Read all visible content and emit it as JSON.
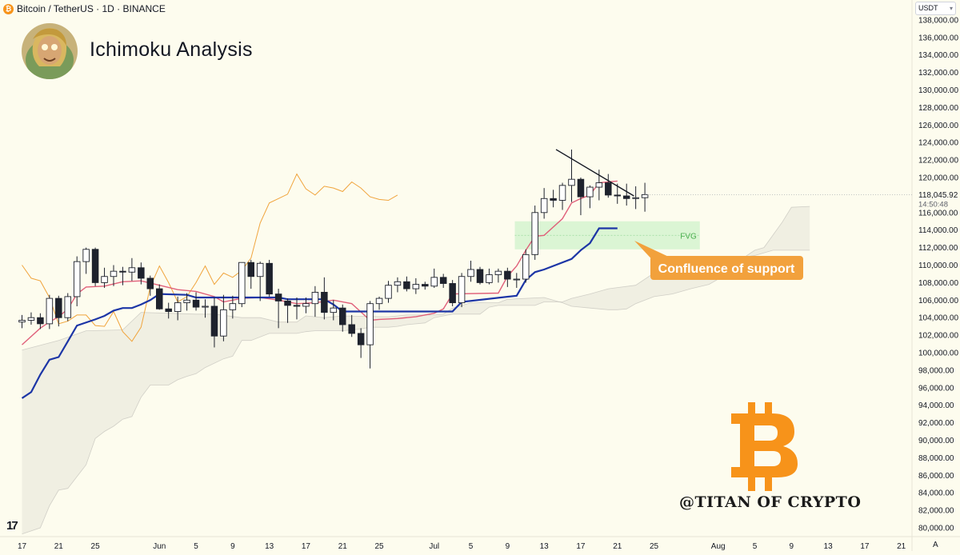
{
  "header": {
    "symbol_line": "Bitcoin / TetherUS · 1D · BINANCE",
    "coin_glyph": "₿"
  },
  "title": "Ichimoku Analysis",
  "currency_select": "USDT",
  "watermark": "@TITAN OF CRYPTO",
  "tv_logo": "17",
  "axis_button": "A",
  "colors": {
    "background": "#fdfcee",
    "bull_candle": "#ffffff",
    "bear_candle": "#1e222d",
    "tenkan": "#e0607a",
    "kijun": "#1c35a6",
    "chikou": "#f0a43c",
    "cloud": "#c4c2bb",
    "fvg": "#bfeec0",
    "callout": "#f2a13c",
    "bitcoin": "#f7931a"
  },
  "chart_data": {
    "type": "candlestick",
    "interval": "1D",
    "ylim": [
      79000,
      139000
    ],
    "y_ticks": [
      "138,000.00",
      "136,000.00",
      "134,000.00",
      "132,000.00",
      "130,000.00",
      "128,000.00",
      "126,000.00",
      "124,000.00",
      "122,000.00",
      "120,000.00",
      "118,000.00",
      "116,000.00",
      "114,000.00",
      "112,000.00",
      "110,000.00",
      "108,000.00",
      "106,000.00",
      "104,000.00",
      "102,000.00",
      "100,000.00",
      "98,000.00",
      "96,000.00",
      "94,000.00",
      "92,000.00",
      "90,000.00",
      "88,000.00",
      "86,000.00",
      "84,000.00",
      "82,000.00",
      "80,000.00"
    ],
    "y_tick_values": [
      138000,
      136000,
      134000,
      132000,
      130000,
      128000,
      126000,
      124000,
      122000,
      120000,
      118000,
      116000,
      114000,
      112000,
      110000,
      108000,
      106000,
      104000,
      102000,
      100000,
      98000,
      96000,
      94000,
      92000,
      90000,
      88000,
      86000,
      84000,
      82000,
      80000
    ],
    "x_ticks": [
      {
        "label": "17",
        "day": 0
      },
      {
        "label": "21",
        "day": 4
      },
      {
        "label": "25",
        "day": 8
      },
      {
        "label": "Jun",
        "day": 15
      },
      {
        "label": "5",
        "day": 19
      },
      {
        "label": "9",
        "day": 23
      },
      {
        "label": "13",
        "day": 27
      },
      {
        "label": "17",
        "day": 31
      },
      {
        "label": "21",
        "day": 35
      },
      {
        "label": "25",
        "day": 39
      },
      {
        "label": "Jul",
        "day": 45
      },
      {
        "label": "5",
        "day": 49
      },
      {
        "label": "9",
        "day": 53
      },
      {
        "label": "13",
        "day": 57
      },
      {
        "label": "17",
        "day": 61
      },
      {
        "label": "21",
        "day": 65
      },
      {
        "label": "25",
        "day": 69
      },
      {
        "label": "Aug",
        "day": 76
      },
      {
        "label": "5",
        "day": 80
      },
      {
        "label": "9",
        "day": 84
      },
      {
        "label": "13",
        "day": 88
      },
      {
        "label": "17",
        "day": 92
      },
      {
        "label": "21",
        "day": 96
      }
    ],
    "candles": [
      [
        103500,
        104300,
        102800,
        103700
      ],
      [
        103700,
        104600,
        103200,
        104000
      ],
      [
        104000,
        104500,
        102700,
        103300
      ],
      [
        103300,
        106600,
        102700,
        106200
      ],
      [
        106200,
        106500,
        103000,
        104000
      ],
      [
        104000,
        106800,
        103600,
        106400
      ],
      [
        106400,
        111000,
        105300,
        110400
      ],
      [
        110400,
        112000,
        109000,
        111800
      ],
      [
        111800,
        112000,
        107600,
        108000
      ],
      [
        108000,
        109700,
        107400,
        108700
      ],
      [
        108700,
        110000,
        107600,
        109300
      ],
      [
        109300,
        109800,
        107700,
        109200
      ],
      [
        109200,
        110800,
        108200,
        109700
      ],
      [
        109700,
        110300,
        107800,
        108500
      ],
      [
        108500,
        108800,
        106500,
        107300
      ],
      [
        107300,
        107800,
        104900,
        105000
      ],
      [
        105000,
        105700,
        103900,
        104700
      ],
      [
        104700,
        106400,
        103700,
        105700
      ],
      [
        105700,
        106800,
        104800,
        106000
      ],
      [
        106000,
        106900,
        104800,
        105200
      ],
      [
        105200,
        106100,
        104000,
        105300
      ],
      [
        105300,
        106300,
        100600,
        101900
      ],
      [
        101900,
        106600,
        101300,
        104900
      ],
      [
        104900,
        106500,
        103900,
        105600
      ],
      [
        105600,
        110300,
        105200,
        110300
      ],
      [
        110300,
        110600,
        107300,
        108700
      ],
      [
        108700,
        110400,
        105900,
        110200
      ],
      [
        110200,
        110600,
        106400,
        106700
      ],
      [
        106700,
        107300,
        102800,
        105900
      ],
      [
        105900,
        106200,
        103400,
        105400
      ],
      [
        105400,
        106300,
        103800,
        105300
      ],
      [
        105300,
        106300,
        104500,
        105600
      ],
      [
        105600,
        107600,
        104100,
        106900
      ],
      [
        106900,
        108600,
        103800,
        104600
      ],
      [
        104600,
        106000,
        103700,
        105100
      ],
      [
        105100,
        105500,
        102400,
        103200
      ],
      [
        103200,
        104300,
        101800,
        102200
      ],
      [
        102200,
        102800,
        99400,
        100900
      ],
      [
        100900,
        105900,
        98200,
        105600
      ],
      [
        105600,
        106400,
        104900,
        106200
      ],
      [
        106200,
        108200,
        105700,
        107700
      ],
      [
        107700,
        108600,
        106900,
        108100
      ],
      [
        108100,
        108700,
        107000,
        107300
      ],
      [
        107300,
        108500,
        106700,
        107800
      ],
      [
        107800,
        108100,
        107200,
        107600
      ],
      [
        107600,
        109600,
        107400,
        108600
      ],
      [
        108600,
        109000,
        107400,
        107900
      ],
      [
        107900,
        108300,
        105300,
        105700
      ],
      [
        105700,
        109100,
        105200,
        108700
      ],
      [
        108700,
        110500,
        108100,
        109500
      ],
      [
        109500,
        109800,
        107800,
        108000
      ],
      [
        108000,
        109600,
        107800,
        108900
      ],
      [
        108900,
        109600,
        108000,
        109300
      ],
      [
        109300,
        109700,
        107500,
        108400
      ],
      [
        108400,
        109100,
        107400,
        108400
      ],
      [
        108400,
        111800,
        108000,
        111200
      ],
      [
        111200,
        116800,
        110600,
        116000
      ],
      [
        116000,
        118800,
        115300,
        117600
      ],
      [
        117600,
        118600,
        116600,
        117400
      ],
      [
        117400,
        119400,
        116300,
        119100
      ],
      [
        119100,
        123200,
        117200,
        119800
      ],
      [
        119800,
        120000,
        115700,
        117800
      ],
      [
        117800,
        119100,
        116500,
        118900
      ],
      [
        118900,
        120900,
        117400,
        119400
      ],
      [
        119400,
        120400,
        117700,
        118000
      ],
      [
        118000,
        119300,
        117000,
        117900
      ],
      [
        117900,
        119300,
        116800,
        117600
      ],
      [
        117600,
        119000,
        116400,
        117700
      ],
      [
        117700,
        119400,
        116100,
        118045.92
      ]
    ],
    "tenkan": [
      [
        0,
        100900
      ],
      [
        2,
        102800
      ],
      [
        3,
        103500
      ],
      [
        4,
        104100
      ],
      [
        5,
        105000
      ],
      [
        6,
        106700
      ],
      [
        7,
        107500
      ],
      [
        9,
        107600
      ],
      [
        11,
        108100
      ],
      [
        13,
        108200
      ],
      [
        15,
        107700
      ],
      [
        17,
        107200
      ],
      [
        19,
        107000
      ],
      [
        21,
        106400
      ],
      [
        22,
        105800
      ],
      [
        24,
        106200
      ],
      [
        26,
        106300
      ],
      [
        28,
        106000
      ],
      [
        30,
        105600
      ],
      [
        32,
        105700
      ],
      [
        34,
        106000
      ],
      [
        36,
        105600
      ],
      [
        38,
        103700
      ],
      [
        39,
        103800
      ],
      [
        41,
        103900
      ],
      [
        43,
        104100
      ],
      [
        45,
        104500
      ],
      [
        46,
        105000
      ],
      [
        47,
        106700
      ],
      [
        52,
        106800
      ],
      [
        53,
        108700
      ],
      [
        54,
        109900
      ],
      [
        55,
        111700
      ],
      [
        56,
        113300
      ],
      [
        57,
        113400
      ],
      [
        59,
        115300
      ],
      [
        60,
        117100
      ],
      [
        61,
        117600
      ],
      [
        62,
        118000
      ],
      [
        63,
        119400
      ],
      [
        65,
        119600
      ]
    ],
    "kijun": [
      [
        0,
        94800
      ],
      [
        1,
        95500
      ],
      [
        2,
        97500
      ],
      [
        3,
        99200
      ],
      [
        4,
        99500
      ],
      [
        5,
        101300
      ],
      [
        6,
        103100
      ],
      [
        8,
        103800
      ],
      [
        9,
        104200
      ],
      [
        10,
        104800
      ],
      [
        11,
        105100
      ],
      [
        12,
        105100
      ],
      [
        13,
        105500
      ],
      [
        14,
        106000
      ],
      [
        15,
        106700
      ],
      [
        18,
        106600
      ],
      [
        19,
        106300
      ],
      [
        28,
        106300
      ],
      [
        29,
        106100
      ],
      [
        33,
        106100
      ],
      [
        34,
        105500
      ],
      [
        35,
        104700
      ],
      [
        47,
        104700
      ],
      [
        48,
        105800
      ],
      [
        54,
        106500
      ],
      [
        55,
        108300
      ],
      [
        56,
        109200
      ],
      [
        57,
        109500
      ],
      [
        60,
        110700
      ],
      [
        61,
        111700
      ],
      [
        62,
        112500
      ],
      [
        63,
        114200
      ],
      [
        65,
        114200
      ]
    ],
    "chikou": [
      [
        0,
        110000
      ],
      [
        1,
        108500
      ],
      [
        2,
        108200
      ],
      [
        3,
        106300
      ],
      [
        4,
        103300
      ],
      [
        5,
        103600
      ],
      [
        6,
        104300
      ],
      [
        7,
        104300
      ],
      [
        8,
        103100
      ],
      [
        9,
        103000
      ],
      [
        10,
        104700
      ],
      [
        11,
        102400
      ],
      [
        12,
        101300
      ],
      [
        13,
        102900
      ],
      [
        14,
        107500
      ],
      [
        15,
        109900
      ],
      [
        16,
        108000
      ],
      [
        17,
        105800
      ],
      [
        18,
        106400
      ],
      [
        19,
        108000
      ],
      [
        20,
        109900
      ],
      [
        21,
        107800
      ],
      [
        22,
        109100
      ],
      [
        23,
        108600
      ],
      [
        24,
        109400
      ],
      [
        25,
        110800
      ],
      [
        26,
        114800
      ],
      [
        27,
        117100
      ],
      [
        28,
        117600
      ],
      [
        29,
        118100
      ],
      [
        30,
        120400
      ],
      [
        31,
        118700
      ],
      [
        32,
        118000
      ],
      [
        33,
        119000
      ],
      [
        34,
        118800
      ],
      [
        35,
        118400
      ],
      [
        36,
        119500
      ],
      [
        37,
        118800
      ],
      [
        38,
        117800
      ],
      [
        39,
        117500
      ],
      [
        40,
        117400
      ],
      [
        41,
        118000
      ]
    ],
    "cloud_upper": [
      [
        0,
        100300
      ],
      [
        4,
        101400
      ],
      [
        7,
        102500
      ],
      [
        11,
        102600
      ],
      [
        13,
        104600
      ],
      [
        16,
        104500
      ],
      [
        19,
        104400
      ],
      [
        21,
        104400
      ],
      [
        24,
        104000
      ],
      [
        26,
        104000
      ],
      [
        28,
        103500
      ],
      [
        30,
        103500
      ],
      [
        31,
        104200
      ],
      [
        33,
        104000
      ],
      [
        35,
        104200
      ],
      [
        40,
        104100
      ],
      [
        42,
        104300
      ],
      [
        45,
        104300
      ],
      [
        46,
        104400
      ],
      [
        47,
        105100
      ],
      [
        49,
        105700
      ],
      [
        52,
        105700
      ],
      [
        53,
        106100
      ],
      [
        57,
        106300
      ],
      [
        59,
        105700
      ],
      [
        60,
        105300
      ],
      [
        62,
        105100
      ],
      [
        64,
        104900
      ],
      [
        65,
        104900
      ],
      [
        66,
        105000
      ],
      [
        67,
        105600
      ],
      [
        69,
        106400
      ],
      [
        71,
        106700
      ],
      [
        73,
        107300
      ],
      [
        75,
        107800
      ],
      [
        76,
        108400
      ],
      [
        77,
        109400
      ],
      [
        78,
        110300
      ],
      [
        80,
        111700
      ],
      [
        81,
        112000
      ],
      [
        83,
        114900
      ],
      [
        84,
        116600
      ],
      [
        86,
        116700
      ]
    ],
    "cloud_lower": [
      [
        0,
        79300
      ],
      [
        2,
        80000
      ],
      [
        3,
        82500
      ],
      [
        4,
        84300
      ],
      [
        5,
        84500
      ],
      [
        7,
        87200
      ],
      [
        8,
        90200
      ],
      [
        9,
        91000
      ],
      [
        10,
        91600
      ],
      [
        11,
        92400
      ],
      [
        12,
        92700
      ],
      [
        13,
        94900
      ],
      [
        14,
        96300
      ],
      [
        16,
        96300
      ],
      [
        17,
        96900
      ],
      [
        18,
        97300
      ],
      [
        19,
        97600
      ],
      [
        20,
        98300
      ],
      [
        22,
        99300
      ],
      [
        23,
        99600
      ],
      [
        24,
        101400
      ],
      [
        25,
        101400
      ],
      [
        27,
        102200
      ],
      [
        30,
        102200
      ],
      [
        31,
        102400
      ],
      [
        32,
        102500
      ],
      [
        35,
        102500
      ],
      [
        36,
        102600
      ],
      [
        37,
        102700
      ],
      [
        38,
        102900
      ],
      [
        40,
        102900
      ],
      [
        41,
        103000
      ],
      [
        42,
        103200
      ],
      [
        44,
        103400
      ],
      [
        45,
        104000
      ],
      [
        47,
        104400
      ],
      [
        48,
        104400
      ],
      [
        50,
        104400
      ],
      [
        51,
        105200
      ],
      [
        52,
        105400
      ],
      [
        56,
        105400
      ],
      [
        57,
        105800
      ],
      [
        59,
        105800
      ],
      [
        60,
        106200
      ],
      [
        62,
        106700
      ],
      [
        64,
        107300
      ],
      [
        67,
        107700
      ],
      [
        69,
        109100
      ],
      [
        72,
        109200
      ],
      [
        74,
        110500
      ],
      [
        76,
        110500
      ],
      [
        78,
        110800
      ],
      [
        80,
        111100
      ],
      [
        82,
        111700
      ],
      [
        86,
        111700
      ]
    ],
    "fvg_zone": {
      "day_start": 53.8,
      "day_end": 74,
      "top": 115000,
      "bottom": 111800,
      "label": "FVG",
      "midline": 113400
    },
    "trendline": [
      [
        58.3,
        123200
      ],
      [
        66.8,
        117900
      ]
    ],
    "last_price": {
      "value": "118,045.92",
      "countdown": "14:50:48",
      "price": 118045.92
    },
    "annotations": [
      {
        "text": "Confluence of support"
      }
    ]
  }
}
